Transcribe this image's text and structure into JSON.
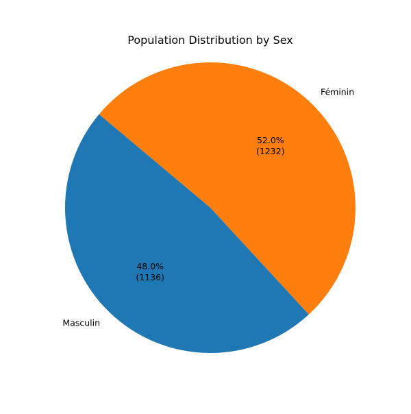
{
  "chart_data": {
    "type": "pie",
    "title": "Population Distribution by Sex",
    "slices": [
      {
        "label": "Féminin",
        "value": 1232,
        "percent": "52.0%",
        "count_text": "(1232)",
        "color": "#ff7f0e"
      },
      {
        "label": "Masculin",
        "value": 1136,
        "percent": "48.0%",
        "count_text": "(1136)",
        "color": "#1f77b4"
      }
    ],
    "start_angle_deg": 140,
    "direction": "clockwise"
  }
}
